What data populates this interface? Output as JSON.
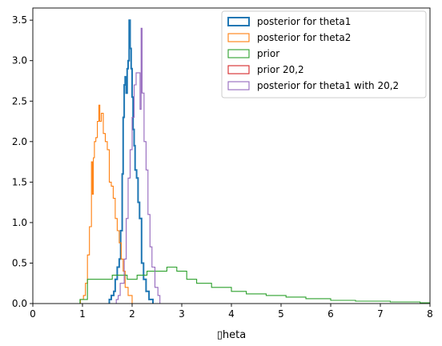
{
  "chart_data": {
    "type": "histogram-step",
    "xlabel": "▯heta",
    "ylabel": "",
    "title": "",
    "xlim": [
      0,
      8
    ],
    "ylim": [
      0,
      3.65
    ],
    "xticks": [
      "0",
      "1",
      "2",
      "3",
      "4",
      "5",
      "6",
      "7",
      "8"
    ],
    "yticks": [
      "0.0",
      "0.5",
      "1.0",
      "1.5",
      "2.0",
      "2.5",
      "3.0",
      "3.5"
    ],
    "grid": false,
    "legend_position": "upper right",
    "series": [
      {
        "name": "posterior for theta1",
        "color": "#1f77b4",
        "linewidth": "thick",
        "points": [
          [
            1.54,
            0
          ],
          [
            1.54,
            0.05
          ],
          [
            1.58,
            0.05
          ],
          [
            1.58,
            0.1
          ],
          [
            1.63,
            0.1
          ],
          [
            1.63,
            0.15
          ],
          [
            1.66,
            0.15
          ],
          [
            1.66,
            0.3
          ],
          [
            1.7,
            0.3
          ],
          [
            1.7,
            0.45
          ],
          [
            1.74,
            0.45
          ],
          [
            1.74,
            0.55
          ],
          [
            1.77,
            0.55
          ],
          [
            1.77,
            0.9
          ],
          [
            1.8,
            0.9
          ],
          [
            1.8,
            1.6
          ],
          [
            1.82,
            1.6
          ],
          [
            1.82,
            2.3
          ],
          [
            1.84,
            2.3
          ],
          [
            1.84,
            2.7
          ],
          [
            1.86,
            2.7
          ],
          [
            1.86,
            2.8
          ],
          [
            1.88,
            2.8
          ],
          [
            1.88,
            2.6
          ],
          [
            1.9,
            2.6
          ],
          [
            1.9,
            2.9
          ],
          [
            1.92,
            2.9
          ],
          [
            1.92,
            3.0
          ],
          [
            1.94,
            3.0
          ],
          [
            1.94,
            3.5
          ],
          [
            1.96,
            3.5
          ],
          [
            1.96,
            3.15
          ],
          [
            1.98,
            3.15
          ],
          [
            1.98,
            2.9
          ],
          [
            2.0,
            2.9
          ],
          [
            2.0,
            2.55
          ],
          [
            2.02,
            2.55
          ],
          [
            2.02,
            2.15
          ],
          [
            2.04,
            2.15
          ],
          [
            2.04,
            1.95
          ],
          [
            2.06,
            1.95
          ],
          [
            2.06,
            1.65
          ],
          [
            2.09,
            1.65
          ],
          [
            2.09,
            1.55
          ],
          [
            2.12,
            1.55
          ],
          [
            2.12,
            1.25
          ],
          [
            2.15,
            1.25
          ],
          [
            2.15,
            1.05
          ],
          [
            2.19,
            1.05
          ],
          [
            2.19,
            0.5
          ],
          [
            2.23,
            0.5
          ],
          [
            2.23,
            0.3
          ],
          [
            2.28,
            0.3
          ],
          [
            2.28,
            0.15
          ],
          [
            2.34,
            0.15
          ],
          [
            2.34,
            0.05
          ],
          [
            2.42,
            0.05
          ],
          [
            2.42,
            0
          ]
        ]
      },
      {
        "name": "posterior for theta2",
        "color": "#ff7f0e",
        "linewidth": "thin",
        "points": [
          [
            0.96,
            0
          ],
          [
            0.96,
            0.05
          ],
          [
            1.02,
            0.05
          ],
          [
            1.02,
            0.1
          ],
          [
            1.06,
            0.1
          ],
          [
            1.06,
            0.25
          ],
          [
            1.1,
            0.25
          ],
          [
            1.1,
            0.6
          ],
          [
            1.14,
            0.6
          ],
          [
            1.14,
            0.95
          ],
          [
            1.18,
            0.95
          ],
          [
            1.18,
            1.75
          ],
          [
            1.2,
            1.75
          ],
          [
            1.2,
            1.35
          ],
          [
            1.22,
            1.35
          ],
          [
            1.22,
            1.8
          ],
          [
            1.24,
            1.8
          ],
          [
            1.24,
            2.0
          ],
          [
            1.27,
            2.0
          ],
          [
            1.27,
            2.05
          ],
          [
            1.3,
            2.05
          ],
          [
            1.3,
            2.25
          ],
          [
            1.33,
            2.25
          ],
          [
            1.33,
            2.45
          ],
          [
            1.35,
            2.45
          ],
          [
            1.35,
            2.25
          ],
          [
            1.38,
            2.25
          ],
          [
            1.38,
            2.35
          ],
          [
            1.42,
            2.35
          ],
          [
            1.42,
            2.1
          ],
          [
            1.46,
            2.1
          ],
          [
            1.46,
            2.0
          ],
          [
            1.5,
            2.0
          ],
          [
            1.5,
            1.9
          ],
          [
            1.54,
            1.9
          ],
          [
            1.54,
            1.5
          ],
          [
            1.58,
            1.5
          ],
          [
            1.58,
            1.45
          ],
          [
            1.62,
            1.45
          ],
          [
            1.62,
            1.3
          ],
          [
            1.66,
            1.3
          ],
          [
            1.66,
            1.05
          ],
          [
            1.7,
            1.05
          ],
          [
            1.7,
            0.9
          ],
          [
            1.74,
            0.9
          ],
          [
            1.74,
            0.75
          ],
          [
            1.78,
            0.75
          ],
          [
            1.78,
            0.55
          ],
          [
            1.82,
            0.55
          ],
          [
            1.82,
            0.4
          ],
          [
            1.86,
            0.4
          ],
          [
            1.86,
            0.2
          ],
          [
            1.92,
            0.2
          ],
          [
            1.92,
            0.1
          ],
          [
            2.0,
            0.1
          ],
          [
            2.0,
            0
          ]
        ]
      },
      {
        "name": "prior",
        "color": "#2ca02c",
        "linewidth": "thin",
        "points": [
          [
            0.95,
            0
          ],
          [
            0.95,
            0.05
          ],
          [
            1.1,
            0.05
          ],
          [
            1.1,
            0.3
          ],
          [
            1.6,
            0.3
          ],
          [
            1.6,
            0.35
          ],
          [
            1.9,
            0.35
          ],
          [
            1.9,
            0.3
          ],
          [
            2.1,
            0.3
          ],
          [
            2.1,
            0.35
          ],
          [
            2.3,
            0.35
          ],
          [
            2.3,
            0.4
          ],
          [
            2.7,
            0.4
          ],
          [
            2.7,
            0.45
          ],
          [
            2.9,
            0.45
          ],
          [
            2.9,
            0.4
          ],
          [
            3.1,
            0.4
          ],
          [
            3.1,
            0.3
          ],
          [
            3.3,
            0.3
          ],
          [
            3.3,
            0.25
          ],
          [
            3.6,
            0.25
          ],
          [
            3.6,
            0.2
          ],
          [
            4.0,
            0.2
          ],
          [
            4.0,
            0.15
          ],
          [
            4.3,
            0.15
          ],
          [
            4.3,
            0.12
          ],
          [
            4.7,
            0.12
          ],
          [
            4.7,
            0.1
          ],
          [
            5.1,
            0.1
          ],
          [
            5.1,
            0.08
          ],
          [
            5.5,
            0.08
          ],
          [
            5.5,
            0.06
          ],
          [
            6.0,
            0.06
          ],
          [
            6.0,
            0.04
          ],
          [
            6.5,
            0.04
          ],
          [
            6.5,
            0.03
          ],
          [
            7.2,
            0.03
          ],
          [
            7.2,
            0.02
          ],
          [
            7.8,
            0.02
          ],
          [
            7.8,
            0.01
          ],
          [
            8.0,
            0.01
          ]
        ]
      },
      {
        "name": "prior 20,2",
        "color": "#d62728",
        "linewidth": "thin",
        "points": []
      },
      {
        "name": "posterior for theta1 with 20,2",
        "color": "#9467bd",
        "linewidth": "thin",
        "points": [
          [
            1.68,
            0
          ],
          [
            1.68,
            0.05
          ],
          [
            1.72,
            0.05
          ],
          [
            1.72,
            0.1
          ],
          [
            1.76,
            0.1
          ],
          [
            1.76,
            0.25
          ],
          [
            1.84,
            0.25
          ],
          [
            1.84,
            0.55
          ],
          [
            1.88,
            0.55
          ],
          [
            1.88,
            1.05
          ],
          [
            1.92,
            1.05
          ],
          [
            1.92,
            1.55
          ],
          [
            1.96,
            1.55
          ],
          [
            1.96,
            1.9
          ],
          [
            2.0,
            1.9
          ],
          [
            2.0,
            2.3
          ],
          [
            2.04,
            2.3
          ],
          [
            2.04,
            2.7
          ],
          [
            2.08,
            2.7
          ],
          [
            2.08,
            2.85
          ],
          [
            2.12,
            2.85
          ],
          [
            2.12,
            2.85
          ],
          [
            2.16,
            2.85
          ],
          [
            2.16,
            2.4
          ],
          [
            2.18,
            2.4
          ],
          [
            2.18,
            3.4
          ],
          [
            2.2,
            3.4
          ],
          [
            2.2,
            2.6
          ],
          [
            2.24,
            2.6
          ],
          [
            2.24,
            2.0
          ],
          [
            2.28,
            2.0
          ],
          [
            2.28,
            1.65
          ],
          [
            2.32,
            1.65
          ],
          [
            2.32,
            1.1
          ],
          [
            2.36,
            1.1
          ],
          [
            2.36,
            0.7
          ],
          [
            2.4,
            0.7
          ],
          [
            2.4,
            0.45
          ],
          [
            2.46,
            0.45
          ],
          [
            2.46,
            0.2
          ],
          [
            2.52,
            0.2
          ],
          [
            2.52,
            0.1
          ],
          [
            2.56,
            0.1
          ],
          [
            2.56,
            0
          ]
        ]
      }
    ]
  }
}
